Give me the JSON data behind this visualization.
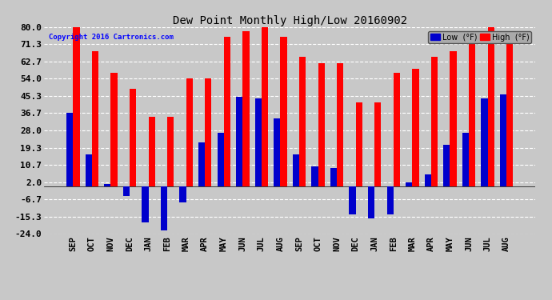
{
  "title": "Dew Point Monthly High/Low 20160902",
  "copyright": "Copyright 2016 Cartronics.com",
  "categories": [
    "SEP",
    "OCT",
    "NOV",
    "DEC",
    "JAN",
    "FEB",
    "MAR",
    "APR",
    "MAY",
    "JUN",
    "JUL",
    "AUG",
    "SEP",
    "OCT",
    "NOV",
    "DEC",
    "JAN",
    "FEB",
    "MAR",
    "APR",
    "MAY",
    "JUN",
    "JUL",
    "AUG"
  ],
  "high_values": [
    80,
    68,
    57,
    49,
    35,
    35,
    54,
    54,
    75,
    78,
    80,
    75,
    65,
    62,
    62,
    42,
    42,
    57,
    59,
    65,
    68,
    78,
    80,
    78
  ],
  "low_values": [
    37,
    16,
    1,
    -5,
    -18,
    -22,
    -8,
    22,
    27,
    45,
    44,
    34,
    16,
    10,
    9,
    -14,
    -16,
    -14,
    2,
    6,
    21,
    27,
    44,
    46
  ],
  "ylim": [
    -24,
    80
  ],
  "yticks": [
    -24.0,
    -15.3,
    -6.7,
    2.0,
    10.7,
    19.3,
    28.0,
    36.7,
    45.3,
    54.0,
    62.7,
    71.3,
    80.0
  ],
  "high_color": "#ff0000",
  "low_color": "#0000cc",
  "background_color": "#c8c8c8",
  "plot_bg_color": "#c8c8c8",
  "grid_color": "#ffffff",
  "bar_width": 0.35,
  "figwidth": 6.9,
  "figheight": 3.75,
  "dpi": 100
}
